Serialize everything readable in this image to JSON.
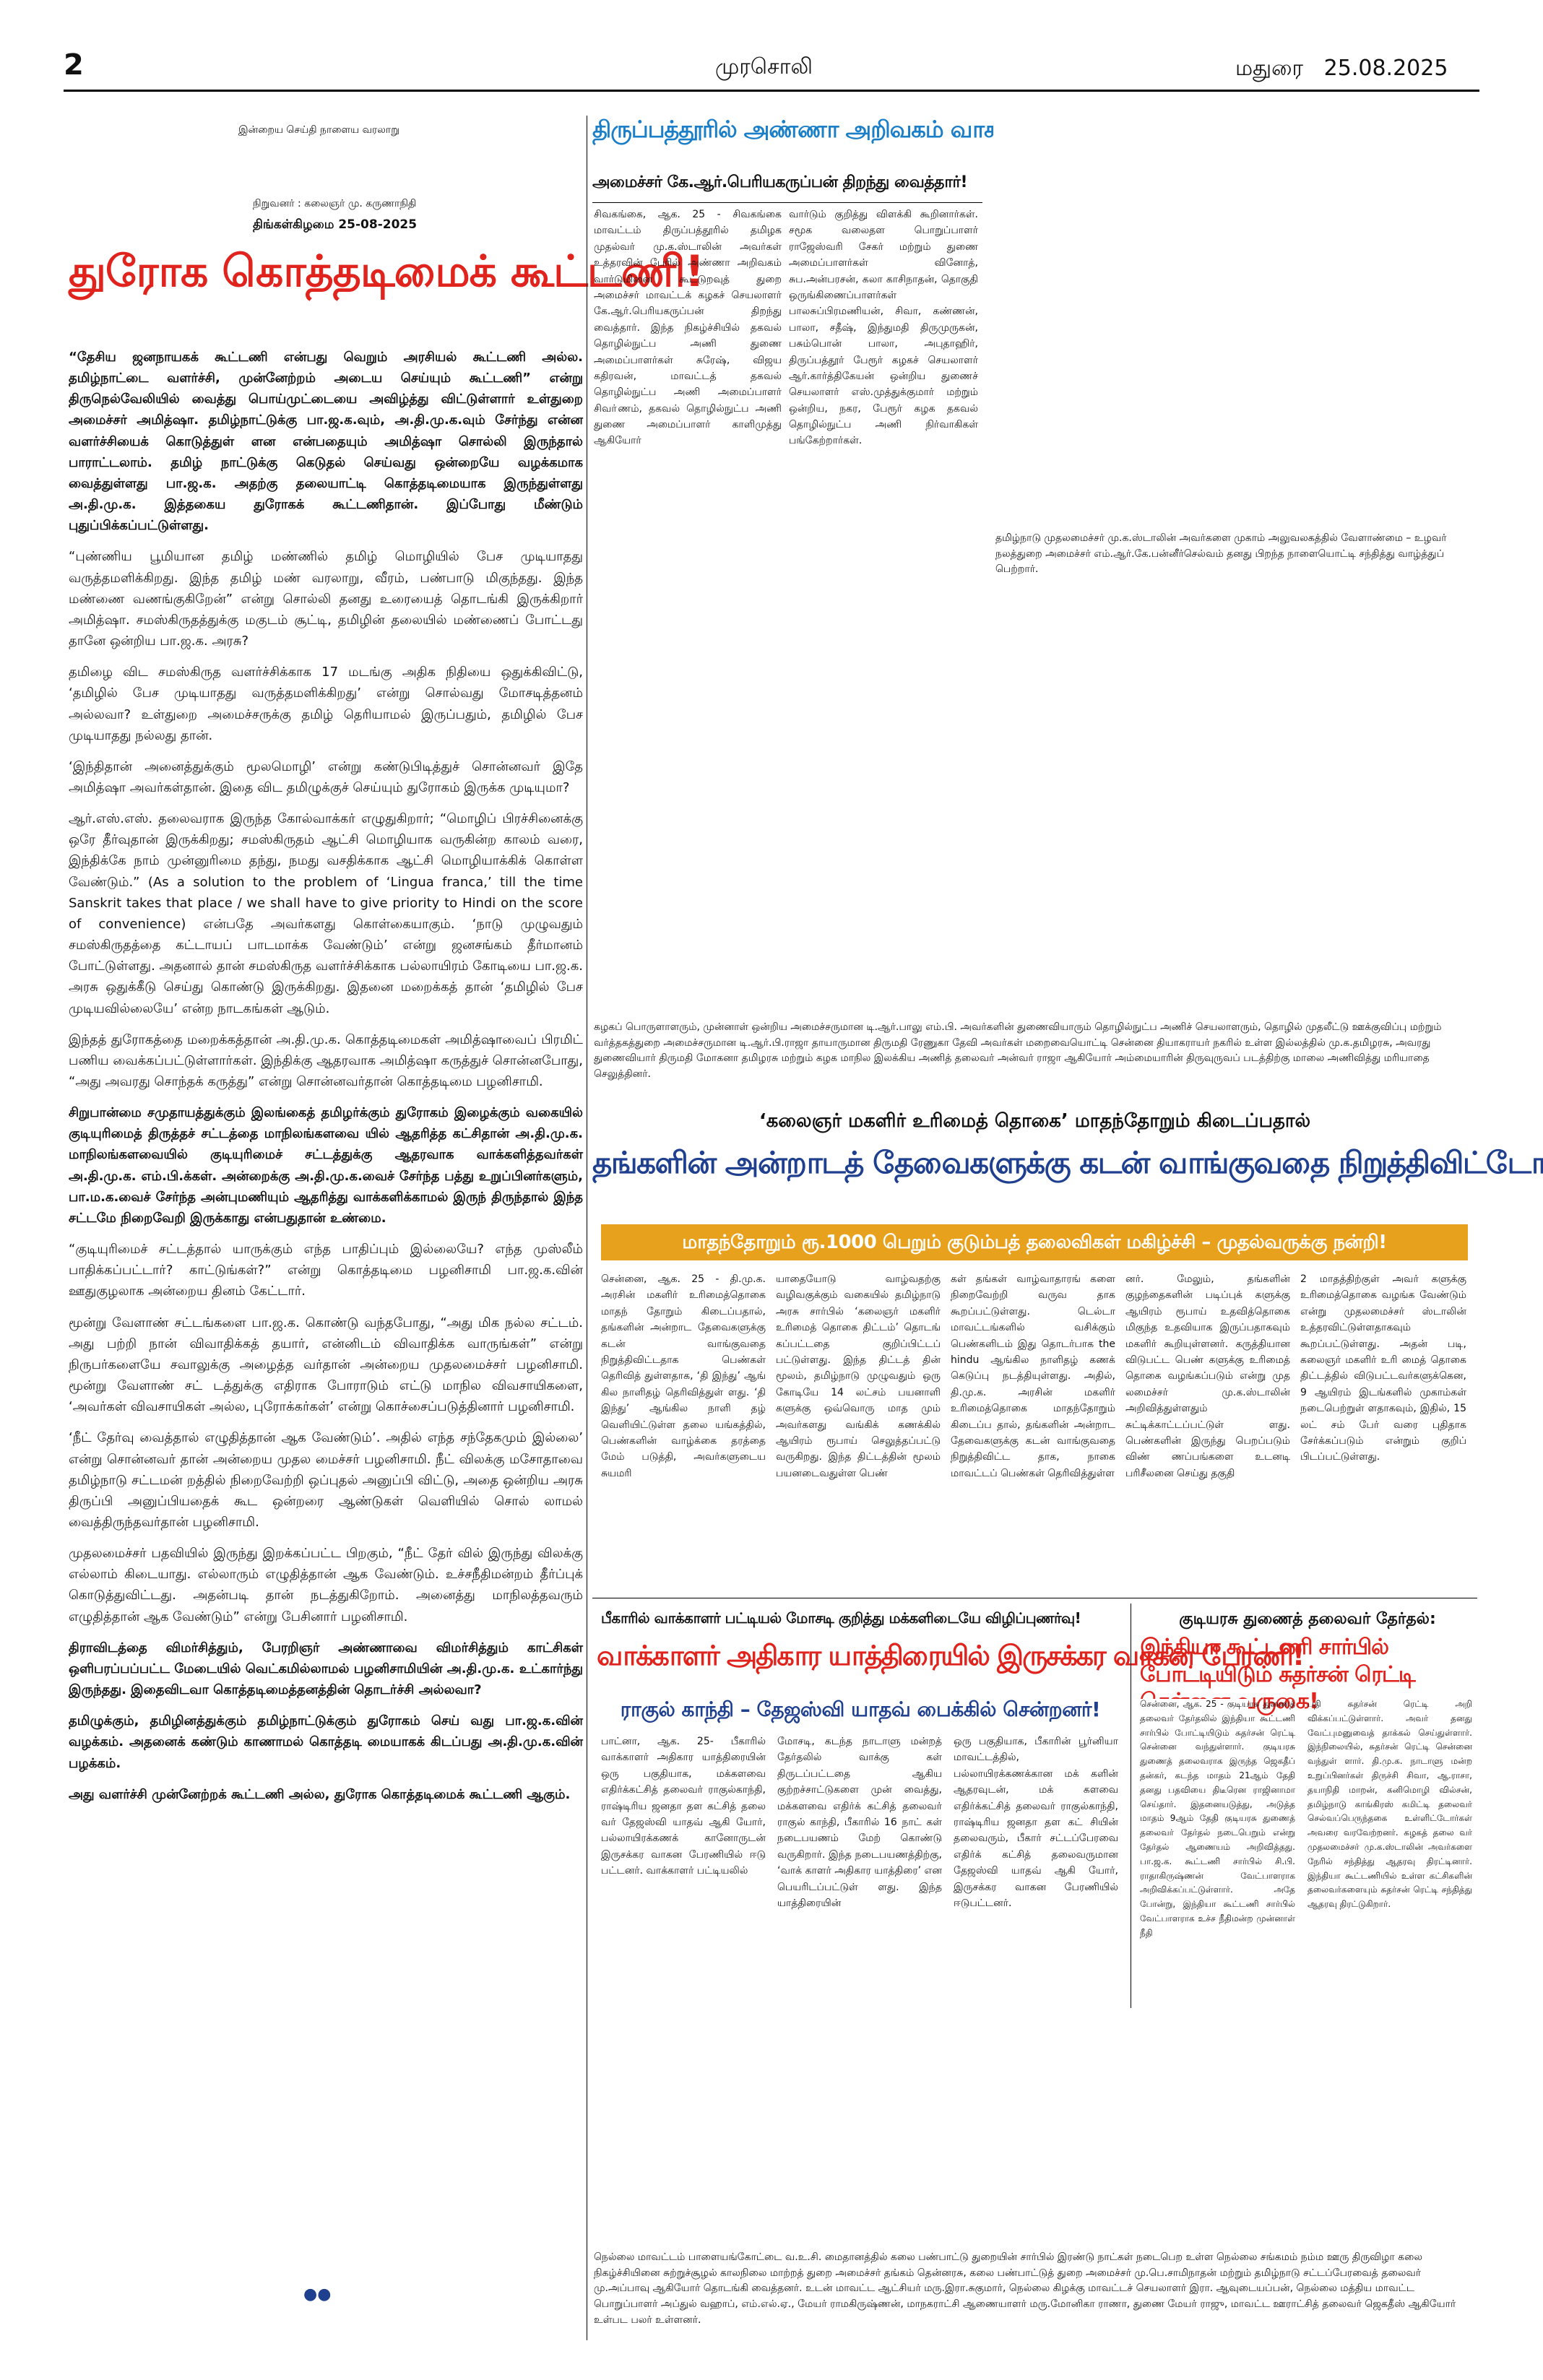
{
  "header": {
    "page_no": "2",
    "paper_name": "முரசொலி",
    "city_date": "மதுரை   25.08.2025"
  },
  "editorial": {
    "history_tag": "இன்றைய செய்தி நாளைய வரலாறு",
    "founder": "நிறுவனர் : கலைஞர் மு. கருணாநிதி",
    "date_line": "திங்கள்கிழமை 25-08-2025",
    "headline": "துரோக கொத்தடிமைக் கூட்டணி!",
    "headline_color": "#e0231c",
    "paras": [
      {
        "text": "“தேசிய ஜனநாயகக் கூட்டணி என்பது வெறும் அரசியல் கூட்டணி அல்ல. தமிழ்நாட்டை வளர்ச்சி, முன்னேற்றம் அடைய செய்யும் கூட்டணி” என்று திருநெல்வேலியில் வைத்து பொய்முட்டையை அவிழ்த்து விட்டுள்ளார் உள்துறை அமைச்சர் அமித்ஷா. தமிழ்நாட்டுக்கு பா.ஜ.க.வும், அ.தி.மு.க.வும் சேர்ந்து என்ன வளர்ச்சியைக் கொடுத்துள் ளன என்பதையும் அமித்ஷா சொல்லி இருந்தால் பாராட்டலாம். தமிழ் நாட்டுக்கு கெடுதல் செய்வது ஒன்றையே வழக்கமாக வைத்துள்ளது பா.ஜ.க. அதற்கு தலையாட்டி கொத்தடிமையாக இருந்துள்ளது அ.தி.மு.க. இத்தகைய துரோகக் கூட்டணிதான். இப்போது மீண்டும் புதுப்பிக்கப்பட்டுள்ளது.",
        "bold": true
      },
      {
        "text": "“புண்ணிய பூமியான தமிழ் மண்ணில் தமிழ் மொழியில் பேச முடியாதது வருத்தமளிக்கிறது. இந்த தமிழ் மண் வரலாறு, வீரம், பண்பாடு மிகுந்தது. இந்த மண்ணை வணங்குகிறேன்” என்று சொல்லி தனது உரையைத் தொடங்கி இருக்கிறார் அமித்ஷா. சமஸ்கிருதத்துக்கு மகுடம் சூட்டி, தமிழின் தலையில் மண்ணைப் போட்டது தானே ஒன்றிய பா.ஜ.க. அரசு?",
        "bold": false
      },
      {
        "text": "தமிழை விட சமஸ்கிருத வளர்ச்சிக்காக 17 மடங்கு அதிக நிதியை ஒதுக்கிவிட்டு, ‘தமிழில் பேச முடியாதது வருத்தமளிக்கிறது’ என்று சொல்வது மோசடித்தனம் அல்லவா? உள்துறை அமைச்சருக்கு தமிழ் தெரியாமல் இருப்பதும், தமிழில் பேச முடியாதது நல்லது தான்.",
        "bold": false
      },
      {
        "text": "‘இந்திதான் அனைத்துக்கும் மூலமொழி’ என்று கண்டுபிடித்துச் சொன்னவர் இதே அமித்ஷா அவர்கள்தான். இதை விட தமிழுக்குச் செய்யும் துரோகம் இருக்க முடியுமா?",
        "bold": false
      },
      {
        "text": "ஆர்.எஸ்.எஸ். தலைவராக இருந்த கோல்வாக்கர் எழுதுகிறார்; “மொழிப் பிரச்சினைக்கு ஒரே தீர்வுதான் இருக்கிறது; சமஸ்கிருதம் ஆட்சி மொழியாக வருகின்ற காலம் வரை, இந்திக்கே நாம் முன்னுரிமை தந்து, நமது வசதிக்காக ஆட்சி மொழியாக்கிக் கொள்ள வேண்டும்.” (As a solution to the problem of ‘Lingua franca,’ till the time Sanskrit takes that place / we shall have to give priority to Hindi on the score of convenience) என்பதே அவர்களது கொள்கையாகும். ‘நாடு முழுவதும் சமஸ்கிருதத்தை கட்டாயப் பாடமாக்க வேண்டும்’ என்று ஜனசங்கம் தீர்மானம் போட்டுள்ளது. அதனால் தான் சமஸ்கிருத வளர்ச்சிக்காக பல்லாயிரம் கோடியை பா.ஜ.க. அரசு ஒதுக்கீடு செய்து கொண்டு இருக்கிறது. இதனை மறைக்கத் தான் ‘தமிழில் பேச முடியவில்லையே’ என்ற நாடகங்கள் ஆடும்.",
        "bold": false
      },
      {
        "text": "இந்தத் துரோகத்தை மறைக்கத்தான் அ.தி.மு.க. கொத்தடிமைகள் அமித்ஷாவைப் பிரமிட் பணிய வைக்கப்பட்டுள்ளார்கள். இந்திக்கு ஆதரவாக அமித்ஷா கருத்துச் சொன்னபோது, “அது அவரது சொந்தக் கருத்து” என்று சொன்னவர்தான் கொத்தடிமை பழனிசாமி.",
        "bold": false
      },
      {
        "text": "சிறுபான்மை சமுதாயத்துக்கும் இலங்கைத் தமிழர்க்கும் துரோகம் இழைக்கும் வகையில் குடியுரிமைத் திருத்தச் சட்டத்தை மாநிலங்களவை யில் ஆதரித்த கட்சிதான் அ.தி.மு.க. மாநிலங்களவையில் குடியுரிமைச் சட்டத்துக்கு ஆதரவாக வாக்களித்தவர்கள் அ.தி.மு.க. எம்.பி.க்கள். அன்றைக்கு அ.தி.மு.க.வைச் சேர்ந்த பத்து உறுப்பினர்களும், பா.ம.க.வைச் சேர்ந்த அன்புமணியும் ஆதரித்து வாக்களிக்காமல் இருந் திருந்தால் இந்த சட்டமே நிறைவேறி இருக்காது என்பதுதான் உண்மை.",
        "bold": true
      },
      {
        "text": "“குடியுரிமைச் சட்டத்தால் யாருக்கும் எந்த பாதிப்பும் இல்லையே? எந்த முஸ்லீம் பாதிக்கப்பட்டார்? காட்டுங்கள்?” என்று கொத்தடிமை பழனிசாமி பா.ஜ.க.வின் ஊதுகுழலாக அன்றைய தினம் கேட்டார்.",
        "bold": false
      },
      {
        "text": "மூன்று வேளாண் சட்டங்களை பா.ஜ.க. கொண்டு வந்தபோது, “அது மிக நல்ல சட்டம். அது பற்றி நான் விவாதிக்கத் தயார், என்னிடம் விவாதிக்க வாருங்கள்” என்று நிருபர்களையே சவாலுக்கு அழைத்த வர்தான் அன்றைய முதலமைச்சர் பழனிசாமி. மூன்று வேளாண் சட் டத்துக்கு எதிராக போராடும் எட்டு மாநில விவசாயிகளை, ‘அவர்கள் விவசாயிகள் அல்ல, புரோக்கர்கள்’ என்று கொச்சைப்படுத்தினார் பழனிசாமி.",
        "bold": false
      },
      {
        "text": "‘நீட் தேர்வு வைத்தால் எழுதித்தான் ஆக வேண்டும்’. அதில் எந்த சந்தேகமும் இல்லை’ என்று சொன்னவர் தான் அன்றைய முதல மைச்சர் பழனிசாமி. நீட் விலக்கு மசோதாவை தமிழ்நாடு சட்டமன் றத்தில் நிறைவேற்றி ஒப்புதல் அனுப்பி விட்டு, அதை ஒன்றிய அரசு திருப்பி அனுப்பியதைக் கூட ஒன்றரை ஆண்டுகள் வெளியில் சொல் லாமல் வைத்திருந்தவர்தான் பழனிசாமி.",
        "bold": false
      },
      {
        "text": "முதலமைச்சர் பதவியில் இருந்து இறக்கப்பட்ட பிறகும், “நீட் தேர் வில் இருந்து விலக்கு எல்லாம் கிடையாது. எல்லாரும் எழுதித்தான் ஆக வேண்டும். உச்சநீதிமன்றம் தீர்ப்புக் கொடுத்துவிட்டது. அதன்படி தான் நடத்துகிறோம். அனைத்து மாநிலத்தவரும் எழுதித்தான் ஆக வேண்டும்” என்று பேசினார் பழனிசாமி.",
        "bold": false
      },
      {
        "text": "திராவிடத்தை விமர்சித்தும், பேரறிஞர் அண்ணாவை விமர்சித்தும் காட்சிகள் ஒளிபரப்பப்பட்ட மேடையில் வெட்கமில்லாமல் பழனிசாமியின் அ.தி.மு.க. உட்கார்ந்து இருந்தது. இதைவிடவா கொத்தடிமைத்தனத்தின் தொடர்ச்சி அல்லவா?",
        "bold": true
      },
      {
        "text": "தமிழுக்கும், தமிழினத்துக்கும் தமிழ்நாட்டுக்கும் துரோகம் செய் வது பா.ஜ.க.வின் வழக்கம். அதனைக் கண்டும் காணாமல் கொத்தடி மையாகக் கிடப்பது அ.தி.மு.க.வின் பழக்கம்.",
        "bold": true
      },
      {
        "text": "அது வளர்ச்சி முன்னேற்றக் கூட்டணி அல்ல, துரோக கொத்தடிமைக் கூட்டணி ஆகும்.",
        "bold": true
      }
    ],
    "end_mark": "●●"
  },
  "library_story": {
    "headline": "திருப்பத்தூரில் அண்ணா அறிவகம் வாசம்!",
    "headline_color": "#1a7fc8",
    "subhead": "அமைச்சர் கே.ஆர்.பெரியகருப்பன் திறந்து வைத்தார்!",
    "col1": "சிவகங்கை, ஆக. 25 - சிவகங்கை மாவட்டம் திருப்பத்தூரில் தமிழக முதல்வர் மு.க.ஸ்டாலின் அவர்கள் உத்தரவின் பேரில் அண்ணா அறிவகம் வார்டுமினை கூட்டுறவுத் துறை அமைச்சர் மாவட்டக் கழகச் செயலாளர் கே.ஆர்.பெரியகருப்பன் திறந்து வைத்தார். இந்த நிகழ்ச்சியில் தகவல் தொழில்நுட்ப அணி துணை அமைப்பாளர்கள் சுரேஷ், விஜய கதிரவன், மாவட்டத் தகவல் தொழில்நுட்ப அணி அமைப்பாளர் சிவா்ணம், தகவல் தொழில்நுட்ப அணி துணை அமைப்பாளர் காளிமுத்து ஆகியோர்",
    "col2": "வார்டும் குறித்து விளக்கி கூறினார்கள். சமூக வலைதள பொறுப்பாளர் ராஜேஸ்வரி சேகர் மற்றும் துணை அமைப்பாளர்கள் வினோத், சுப.அன்பரசன், கலா காசிநாதன், தொகுதி ஒருங்கிணைப்பாளர்கள் பாலசுப்பிரமணியன், சிவா, கண்ணன், பாலா, சதீஷ், இந்துமதி திருமுருகன், பசும்பொன் பாலா, அபுதாஹிர், திருப்பத்தூர் பேரூர் கழகச் செயலாளர் ஆர்.கார்த்திகேயன் ஒன்றிய துணைச் செயலாளர் எஸ்.முத்துக்குமார் மற்றும் ஒன்றிய, நகர, பேரூர் கழக தகவல் தொழில்நுட்ப அணி நிர்வாகிகள் பங்கேற்றார்கள்."
  },
  "photo1_caption": "தமிழ்நாடு முதலமைச்சர் மு.க.ஸ்டாலின் அவர்களை முகாம் அலுவலகத்தில் வேளாண்மை – உழவர் நலத்துறை அமைச்சர் எம்.ஆர்.கே.பன்னீர்செல்வம் தனது பிறந்த நாளையொட்டி சந்தித்து வாழ்த்துப் பெற்றார்.",
  "photo2_caption": "கழகப் பொருளாளரும், முன்னாள் ஒன்றிய அமைச்சருமான டி.ஆர்.பாலு எம்.பி. அவர்களின் துணைவியாரும் தொழில்நுட்ப அணிச் செயலாளரும், தொழில் முதலீட்டு ஊக்குவிப்பு மற்றும் வர்த்தகத்துறை அமைச்சருமான டி.ஆர்.பி.ராஜா தாயாருமான திருமதி ரேணுகா தேவி அவர்கள் மறைவையொட்டி சென்னை தியாகராயர் நகரில் உள்ள இல்லத்தில் மு.க.தமிழரசு, அவரது துணைவியார் திருமதி மோகனா தமிழரசு மற்றும் கழக மாநில இலக்கிய அணித் தலைவர் அன்வர் ராஜா ஆகியோர் அம்மையாரின் திருவுருவப் படத்திற்கு மாலை அணிவித்து மரியாதை செலுத்தினர்.",
  "women_story": {
    "kicker": "‘கலைஞர் மகளிர் உரிமைத் தொகை’ மாதந்தோறும் கிடைப்பதால்",
    "headline": "தங்களின் அன்றாடத் தேவைகளுக்கு கடன் வாங்குவதை நிறுத்திவிட்டோம்!",
    "headline_color": "#1f3f8f",
    "banner": "மாதந்தோறும் ரூ.1000 பெறும் குடும்பத் தலைவிகள் மகிழ்ச்சி – முதல்வருக்கு நன்றி!",
    "banner_bg": "#e8a11c",
    "banner_color": "#ffffff",
    "cols": [
      "சென்னை, ஆக. 25 - தி.மு.க. அரசின் மகளிர் உரிமைத்தொகை மாதந் தோறும் கிடைப்பதால், தங்களின் அன்றாட தேவைகளுக்கு கடன் வாங்குவதை நிறுத்திவிட்டதாக பெண்கள் தெரிவித் துள்ளதாக, ‘தி இந்து’ ஆங் கில நாளிதழ் தெரிவித்துள் ளது. ‘தி இந்து’ ஆங்கில நாளி தழ் வெளியிட்டுள்ள தலை யங்கத்தில், பெண்களின் வாழ்க்கை தரத்தை மேம் படுத்தி, அவர்களுடைய சுயமரி",
      "யாதையோடு வாழ்வதற்கு வழிவகுக்கும் வகையில் தமிழ்நாடு அரசு சார்பில் ‘கலைஞர் மகளிர் உரிமைத் தொகை திட்டம்’ தொடங் கப்பட்டதை குறிப்பிட்டப் பட்டுள்ளது. இந்த திட்டத் தின் மூலம், தமிழ்நாடு முழுவதும் ஒரு கோடியே 14 லட்சம் பயனாளி களுக்கு ஒவ்வொரு மாத மும் அவர்களது வங்கிக் கணக்கில் ஆயிரம் ரூபாய் செலுத்தப்பட்டு வருகிறது. இந்த திட்டத்தின் மூலம் பயனடைவதுள்ள பெண்",
      "கள் தங்கள் வாழ்வாதாரங் களை நிறைவேற்றி வருவ தாக கூறப்பட்டுள்ளது. டெல்டா மாவட்டங்களில் வசிக்கும் பெண்களிடம் இது தொடர்பாக the hindu ஆங்கில நாளிதழ் கணக் கெடுப்பு நடத்தியுள்ளது. அதில், தி.மு.க. அரசின் மகளிர் உரிமைத்தொகை மாதந்தோறும் கிடைப்ப தால், தங்களின் அன்றாட தேவைகளுக்கு கடன் வாங்குவதை நிறுத்திவிட்ட தாக, நாகை மாவட்டப் பெண்கள் தெரிவித்துள்ள",
      "னர். மேலும், தங்களின் குழந்தைகளின் படிப்புக் களுக்கு ஆயிரம் ரூபாய் உதவித்தொகை மிகுந்த உதவியாக இருப்பதாகவும் மகளிர் கூறியுள்ளனர். கருத்தியான விடுபட்ட பெண் களுக்கு உரிமைத் தொகை வழங்கப்படும் என்று முத லமைச்சர் மு.க.ஸ்டாலின் அறிவித்துள்ளதும் சுட்டிக்காட்டப்பட்டுள் ளது. பெண்களின் இருந்து பெறப்படும் விண் ணப்பங்களை உடனடி பரிசீலனை செய்து தகுதி",
      "2 மாதத்திற்குள் அவர் களுக்கு உரிமைத்தொகை வழங்க வேண்டும் என்று முதலமைச்சர் ஸ்டாலின் உத்தரவிட்டுள்ளதாகவும் கூறப்பட்டுள்ளது. அதன் படி, கலைஞர் மகளிர் உரி மைத் தொகை திட்டத்தில் விடுபட்டவர்களுக்கென, 9 ஆயிரம் இடங்களில் முகாம்கள் நடைபெற்றுள் ளதாகவும், இதில், 15 லட் சம் பேர் வரை புதிதாக சேர்க்கப்படும் என்றும் குறிப் பிடப்பட்டுள்ளது."
    ]
  },
  "rally_story": {
    "kicker": "பீகாரில் வாக்காளர் பட்டியல் மோசடி குறித்து மக்களிடையே விழிப்புணர்வு!",
    "headline": "வாக்காளர் அதிகார யாத்திரையில் இருசக்கர வாகன பேரணி!",
    "headline_color": "#e0231c",
    "subhead": "ராகுல் காந்தி – தேஜஸ்வி யாதவ் பைக்கில் சென்றனர்!",
    "subhead_color": "#1f3f8f",
    "cols": [
      "பாட்னா, ஆக. 25- பீகாரில் வாக்காளர் அதிகார யாத்திரையின் ஒரு பகுதியாக, மக்களவை எதிர்க்கட்சித் தலைவர் ராகுல்காந்தி, ராஷ்டிரிய ஜனதா தள கட்சித் தலை வர் தேஜஸ்வி யாதவ் ஆகி யோர், பல்லாயிரக்கணக் கானோருடன் இருசக்கர வாகன பேரணியில் ஈடு பட்டனர். வாக்காளர் பட்டியலில்",
      "மோசடி, கடந்த நாடாளு மன்றத் தேர்தலில் வாக்கு கள் திருடப்பட்டதை ஆகிய குற்றச்சாட்டுகளை முன் வைத்து, மக்களவை எதிர்க் கட்சித் தலைவர் ராகுல் காந்தி, பீகாரில் 16 நாட் கள் நடைபயணம் மேற் கொண்டு வருகிறார். இந்த நடைபயணத்திற்கு, ‘வாக் காளர் அதிகார யாத்திரை’ என பெயரிடப்பட்டுள் ளது. இந்த யாத்திரையின்",
      "ஒரு பகுதியாக, பீகாரின் பூர்னியா மாவட்டத்தில், பல்லாயிரக்கணக்கான மக் களின் ஆதரவுடன், மக் களவை எதிர்க்கட்சித் தலைவர் ராகுல்காந்தி, ராஷ்டிரிய ஜனதா தள கட் சியின் தலைவரும், பீகார் சட்டப்பேரவை எதிர்க் கட்சித் தலைவருமான தேஜஸ்வி யாதவ் ஆகி யோர், இருசக்கர வாகன பேரணியில் ஈடுபட்டனர்."
    ]
  },
  "vp_story": {
    "kicker": "குடியரசு துணைத் தலைவர் தேர்தல்:",
    "headline": "இந்தியா கூட்டணி சார்பில் போட்டியிடும் சுதர்சன் ரெட்டி சென்னை வருகை!",
    "headline_color": "#e0231c",
    "col1": "சென்னை, ஆக. 25 - குடியரசு துணைத் தலைவர் தேர்தலில் இந்தியா கூட்டணி சார்பில் போட்டியிடும் சுதர்சன் ரெட்டி சென்னை வந்துள்ளார். குடியரசு துணைத் தலைவராக இருந்த ஜெகதீப் தன்கர், கடந்த மாதம் 21ஆம் தேதி தனது பதவியை திடீரென ராஜினாமா செய்தார். இதனையடுத்து, அடுத்த மாதம் 9ஆம் தேதி குடியரசு துணைத் தலைவர் தேர்தல் நடைபெறும் என்று தேர்தல் ஆணையம் அறிவித்தது. பா.ஜ.க. கூட்டணி சார்பில் சி.பி. ராதாகிருஷ்ணன் வேட்பாளராக அறிவிக்கப்பட்டுள்ளார். அதே போன்று, இந்தியா கூட்டணி சார்பில் வேட்பாளராக உச்ச நீதிமன்ற முன்னாள் நீதி",
    "col2": "பதி சுதர்சன் ரெட்டி அறி விக்கப்பட்டுள்ளார். அவர் தனது வேட்புமனுவைத் தாக்கல் செய்துள்ளார். இந்நிலையில், சுதர்சன் ரெட்டி சென்னை வந்துள் ளார். தி.மு.க. நாடாளு மன்ற உறுப்பினர்கள் திருச்சி சிவா, ஆ.ராசா, தயாநிதி மாறன், கனிமொழி வில்சன், தமிழ்நாடு காங்கிரஸ் கமிட்டி தலைவர் செல்வப்பெருந்தகை உள்ளிட்டோர்கள் அவரை வரவேற்றனர். கழகத் தலை வர் முதலமைச்சர் மு.க.ஸ்டாலின் அவர்களை நேரில் சந்தித்து ஆதரவு திரட்டினார். இந்தியா கூட்டணியில் உள்ள கட்சிகளின் தலைவர்களையும் சுதர்சன் ரெட்டி சந்தித்து ஆதரவு திரட்டுகிறார்."
  },
  "photo3_caption": "நெல்லை மாவட்டம் பாளையங்கோட்டை வ.உ.சி. மைதானத்தில் கலை பண்பாட்டு துறையின் சார்பில் இரண்டு நாட்கள் நடைபெற உள்ள நெல்லை சங்கமம் நம்ம ஊரு திருவிழா கலை நிகழ்ச்சியினை சுற்றுச்சூழல் காலநிலை மாற்றத் துறை அமைச்சர் தங்கம் தென்னரசு, கலை பண்பாட்டுத் துறை அமைச்சர் மு.பெ.சாமிநாதன் மற்றும் தமிழ்நாடு சட்டப்பேரவைத் தலைவர் மு.அப்பாவு ஆகியோர் தொடங்கி வைத்தனர். உடன் மாவட்ட ஆட்சியர் மரு.இரா.சுகுமார், நெல்லை கிழக்கு மாவட்டச் செயலாளர் இரா. ஆவுடையப்பன், நெல்லை மத்திய மாவட்ட பொறுப்பாளர் அப்துல் வஹாப், எம்.எல்.ஏ., மேயர் ராமகிருஷ்ணன், மாநகராட்சி ஆணையாளர் மரு.மோனிகா ராணா, துணை மேயர் ராஜு, மாவட்ட ஊராட்சித் தலைவர் ஜெகதீஸ் ஆகியோர் உள்பட பலர் உள்ளனர்."
}
